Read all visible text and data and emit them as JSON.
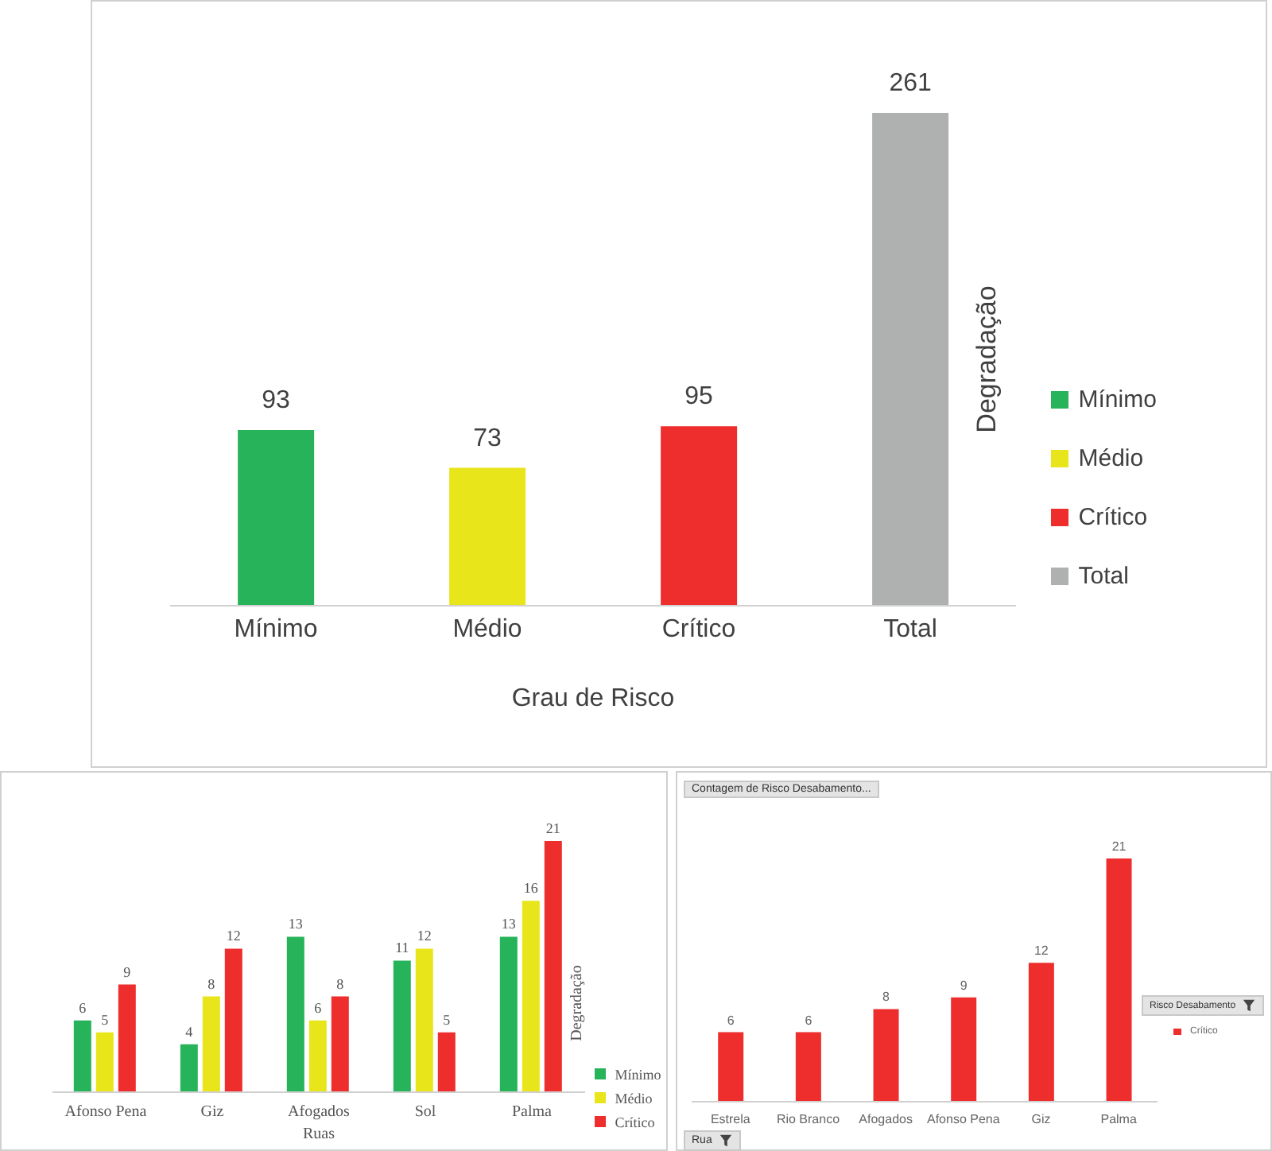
{
  "chart_data": [
    {
      "type": "bar",
      "xlabel": "Grau de Risco",
      "ylabel": "Degradação",
      "categories": [
        "Mínimo",
        "Médio",
        "Crítico",
        "Total"
      ],
      "stacked": true,
      "series": [
        {
          "name": "Mínimo",
          "color": "#27b35a",
          "values": [
            93,
            null,
            null,
            null
          ]
        },
        {
          "name": "Médio",
          "color": "#e9e51b",
          "values": [
            null,
            73,
            null,
            null
          ]
        },
        {
          "name": "Crítico",
          "color": "#ee2d2d",
          "values": [
            null,
            null,
            95,
            null
          ]
        },
        {
          "name": "Total",
          "color": "#afb1b1",
          "values": [
            null,
            null,
            null,
            261
          ]
        }
      ],
      "data_labels": true,
      "legend": "right"
    },
    {
      "type": "bar",
      "xlabel": "Ruas",
      "ylabel": "Degradação",
      "categories": [
        "Afonso Pena",
        "Giz",
        "Afogados",
        "Sol",
        "Palma"
      ],
      "series": [
        {
          "name": "Mínimo",
          "color": "#27b35a",
          "values": [
            6,
            4,
            13,
            11,
            13
          ]
        },
        {
          "name": "Médio",
          "color": "#e9e51b",
          "values": [
            5,
            8,
            6,
            12,
            16
          ]
        },
        {
          "name": "Crítico",
          "color": "#ee2d2d",
          "values": [
            9,
            12,
            8,
            5,
            21
          ]
        }
      ],
      "data_labels": true,
      "legend": "right"
    },
    {
      "type": "bar",
      "title": "Contagem de Risco Desabamento...",
      "xlabel": "Rua",
      "legend_title": "Risco Desabamento",
      "categories": [
        "Estrela",
        "Rio Branco",
        "Afogados",
        "Afonso Pena",
        "Giz",
        "Palma"
      ],
      "series": [
        {
          "name": "Crítico",
          "color": "#ee2d2d",
          "values": [
            6,
            6,
            8,
            9,
            12,
            21
          ]
        }
      ],
      "data_labels": true,
      "legend": "right"
    }
  ]
}
